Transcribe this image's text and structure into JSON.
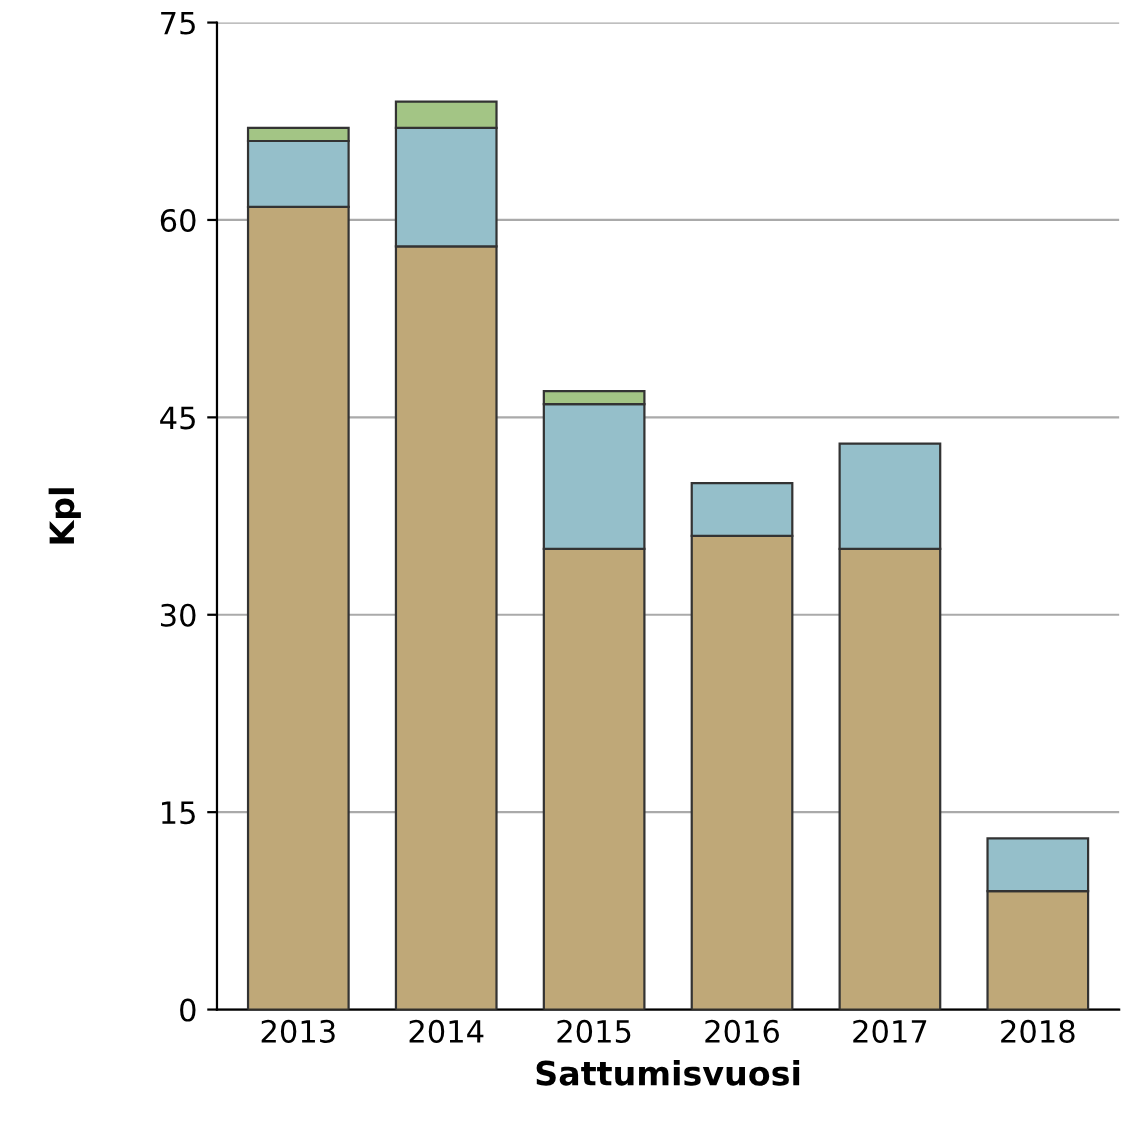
{
  "chart_data": {
    "type": "bar",
    "stacked": true,
    "xlabel": "Sattumisvuosi",
    "ylabel": "Kpl",
    "categories": [
      "2013",
      "2014",
      "2015",
      "2016",
      "2017",
      "2018"
    ],
    "series": [
      {
        "color": "#bfa878",
        "values": [
          61,
          58,
          35,
          36,
          35,
          9
        ]
      },
      {
        "color": "#95bfca",
        "values": [
          5,
          9,
          11,
          4,
          8,
          4
        ]
      },
      {
        "color": "#a3c585",
        "values": [
          1,
          2,
          1,
          null,
          null,
          null
        ]
      }
    ],
    "ylim": [
      0,
      75
    ],
    "yticks": [
      0,
      15,
      30,
      45,
      60,
      75
    ],
    "grid": "y",
    "legend": false
  }
}
